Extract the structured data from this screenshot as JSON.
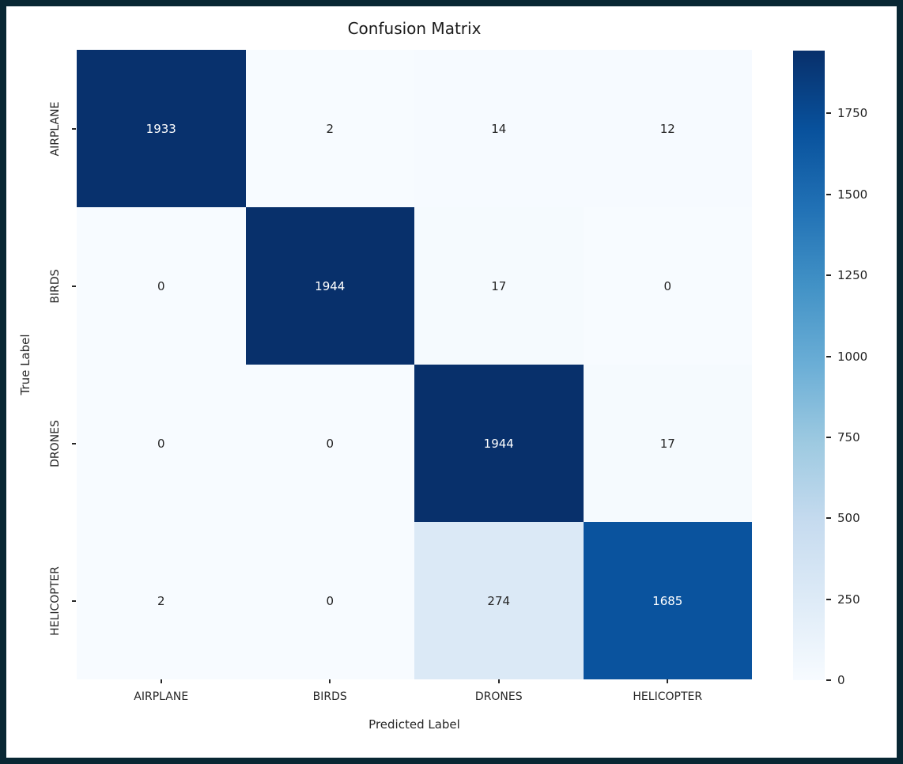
{
  "figure": {
    "title": "Confusion Matrix",
    "xlabel": "Predicted Label",
    "ylabel": "True Label"
  },
  "colors": {
    "frame": "#082733",
    "cmap_low": "#f7fbff",
    "cmap_high": "#08306b",
    "annotation_light": "#ffffff",
    "annotation_dark": "#262626"
  },
  "chart_data": {
    "type": "heatmap",
    "title": "Confusion Matrix",
    "xlabel": "Predicted Label",
    "ylabel": "True Label",
    "categories": [
      "AIRPLANE",
      "BIRDS",
      "DRONES",
      "HELICOPTER"
    ],
    "matrix": [
      [
        1933,
        2,
        14,
        12
      ],
      [
        0,
        1944,
        17,
        0
      ],
      [
        0,
        0,
        1944,
        17
      ],
      [
        2,
        0,
        274,
        1685
      ]
    ],
    "vmin": 0,
    "vmax": 1944,
    "colormap": "Blues",
    "colorbar_ticks": [
      0,
      250,
      500,
      750,
      1000,
      1250,
      1500,
      1750
    ],
    "legend_position": "right-colorbar",
    "grid": false,
    "annotations": true
  }
}
